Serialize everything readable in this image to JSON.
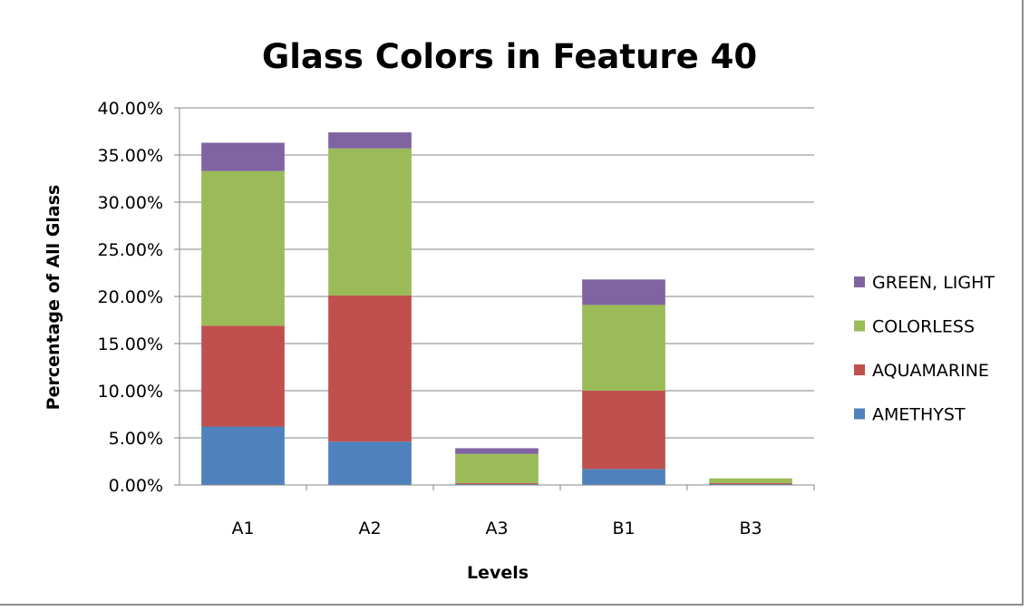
{
  "chart_data": {
    "type": "bar",
    "stacked": true,
    "title": "Glass Colors in Feature 40",
    "xlabel": "Levels",
    "ylabel": "Percentage of All Glass",
    "ylim": [
      0,
      40
    ],
    "yticks": [
      "0.00%",
      "5.00%",
      "10.00%",
      "15.00%",
      "20.00%",
      "25.00%",
      "30.00%",
      "35.00%",
      "40.00%"
    ],
    "grid": true,
    "legend_position": "right",
    "categories": [
      "A1",
      "A2",
      "A3",
      "B1",
      "B3"
    ],
    "series": [
      {
        "name": "AMETHYST",
        "color": "#4f81bd",
        "values": [
          6.2,
          4.6,
          0.1,
          1.7,
          0.1
        ]
      },
      {
        "name": "AQUAMARINE",
        "color": "#c0504d",
        "values": [
          10.7,
          15.5,
          0.1,
          8.3,
          0.1
        ]
      },
      {
        "name": "COLORLESS",
        "color": "#9bbb59",
        "values": [
          16.4,
          15.6,
          3.1,
          9.1,
          0.5
        ]
      },
      {
        "name": "GREEN, LIGHT",
        "color": "#8064a2",
        "values": [
          3.0,
          1.7,
          0.6,
          2.7,
          0.0
        ]
      }
    ]
  }
}
